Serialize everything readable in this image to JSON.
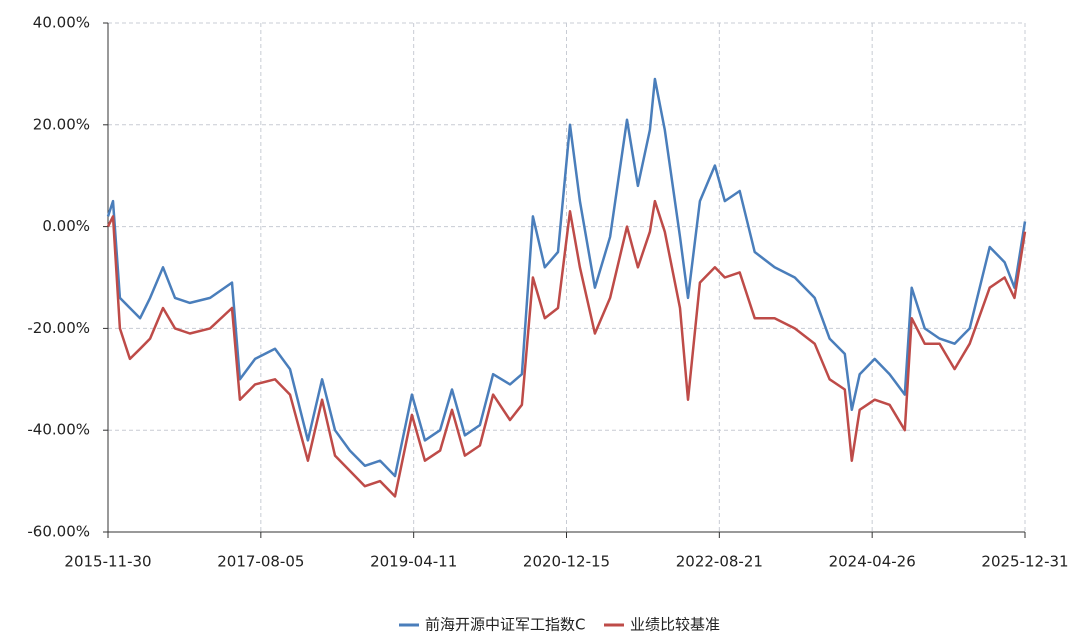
{
  "chart_data": {
    "type": "line",
    "x": [
      "2015-11-30",
      "2015-12-20",
      "2016-01-17",
      "2016-02-26",
      "2016-04-07",
      "2016-05-17",
      "2016-07-08",
      "2016-08-25",
      "2016-10-24",
      "2017-01-13",
      "2017-04-11",
      "2017-05-13",
      "2017-07-13",
      "2017-10-01",
      "2017-11-30",
      "2018-02-10",
      "2018-04-08",
      "2018-05-30",
      "2018-07-29",
      "2018-09-27",
      "2018-11-27",
      "2019-01-26",
      "2019-04-04",
      "2019-05-26",
      "2019-07-26",
      "2019-09-12",
      "2019-11-03",
      "2020-01-02",
      "2020-02-24",
      "2020-05-02",
      "2020-06-19",
      "2020-08-02",
      "2020-09-19",
      "2020-11-11",
      "2020-12-29",
      "2021-02-07",
      "2021-04-08",
      "2021-06-08",
      "2021-08-15",
      "2021-09-28",
      "2021-11-15",
      "2021-12-05",
      "2022-01-14",
      "2022-03-16",
      "2022-04-17",
      "2022-06-04",
      "2022-08-03",
      "2022-09-12",
      "2022-11-11",
      "2023-01-10",
      "2023-03-31",
      "2023-06-20",
      "2023-09-08",
      "2023-11-07",
      "2024-01-07",
      "2024-02-04",
      "2024-03-07",
      "2024-05-06",
      "2024-07-05",
      "2024-09-04",
      "2024-10-02",
      "2024-11-23",
      "2025-01-22",
      "2025-03-23",
      "2025-05-23",
      "2025-08-11",
      "2025-10-10",
      "2025-11-19",
      "2025-12-31"
    ],
    "series": [
      {
        "name": "前海开源中证军工指数C",
        "color": "#4a7ebb",
        "values": [
          2,
          5,
          -14,
          -16,
          -18,
          -14,
          -8,
          -14,
          -15,
          -14,
          -11,
          -30,
          -26,
          -24,
          -28,
          -42,
          -30,
          -40,
          -44,
          -47,
          -46,
          -49,
          -33,
          -42,
          -40,
          -32,
          -41,
          -39,
          -29,
          -31,
          -29,
          2,
          -8,
          -5,
          20,
          5,
          -12,
          -2,
          21,
          8,
          19,
          29,
          19,
          -2,
          -14,
          5,
          12,
          5,
          7,
          -5,
          -8,
          -10,
          -14,
          -22,
          -25,
          -36,
          -29,
          -26,
          -29,
          -33,
          -12,
          -20,
          -22,
          -23,
          -20,
          -4,
          -7,
          -12,
          1
        ]
      },
      {
        "name": "业绩比较基准",
        "color": "#be4b48",
        "values": [
          0,
          2,
          -20,
          -26,
          -24,
          -22,
          -16,
          -20,
          -21,
          -20,
          -16,
          -34,
          -31,
          -30,
          -33,
          -46,
          -34,
          -45,
          -48,
          -51,
          -50,
          -53,
          -37,
          -46,
          -44,
          -36,
          -45,
          -43,
          -33,
          -38,
          -35,
          -10,
          -18,
          -16,
          3,
          -8,
          -21,
          -14,
          0,
          -8,
          -1,
          5,
          -1,
          -16,
          -34,
          -11,
          -8,
          -10,
          -9,
          -18,
          -18,
          -20,
          -23,
          -30,
          -32,
          -46,
          -36,
          -34,
          -35,
          -40,
          -18,
          -23,
          -23,
          -28,
          -23,
          -12,
          -10,
          -14,
          -1
        ]
      }
    ],
    "xlim": [
      "2015-11-30",
      "2025-12-31"
    ],
    "xticks": [
      "2015-11-30",
      "2017-08-05",
      "2019-04-11",
      "2020-12-15",
      "2022-08-21",
      "2024-04-26",
      "2025-12-31"
    ],
    "ylim": [
      -60,
      40
    ],
    "yticks": [
      {
        "value": -60,
        "label": "-60.00%"
      },
      {
        "value": -40,
        "label": "-40.00%"
      },
      {
        "value": -20,
        "label": "-20.00%"
      },
      {
        "value": 0,
        "label": "0.00%"
      },
      {
        "value": 20,
        "label": "20.00%"
      },
      {
        "value": 40,
        "label": "40.00%"
      }
    ],
    "grid": true,
    "legend": "bottom"
  }
}
